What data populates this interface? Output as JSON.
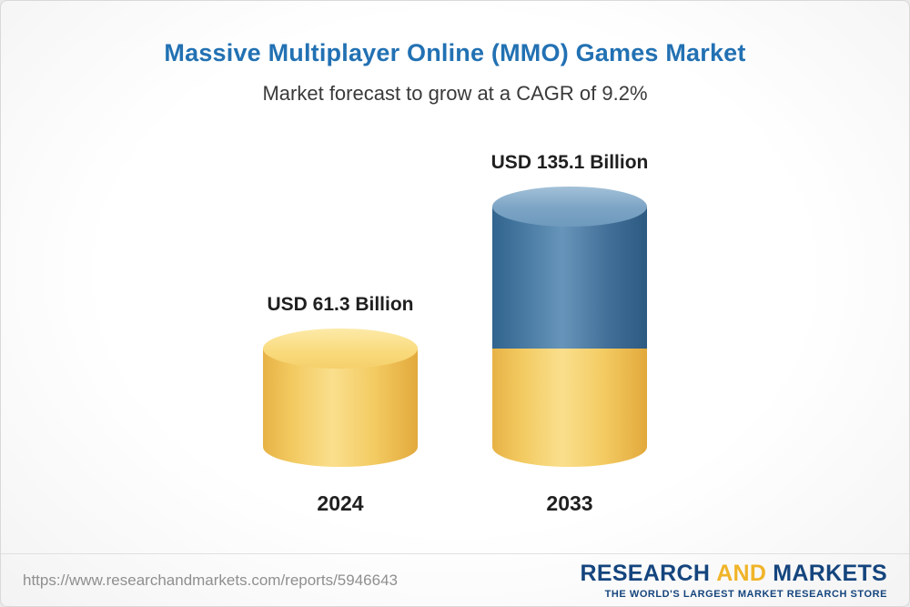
{
  "chart_data": {
    "type": "bar",
    "variant": "3d-cylinder",
    "title": "Massive Multiplayer Online (MMO) Games Market",
    "subtitle": "Market forecast to grow at a CAGR of 9.2%",
    "unit": "USD Billion",
    "categories": [
      "2024",
      "2033"
    ],
    "values": [
      61.3,
      135.1
    ],
    "bar_labels": [
      "USD 61.3 Billion",
      "USD 135.1 Billion"
    ],
    "cagr_percent": 9.2,
    "ylim": [
      0,
      140
    ],
    "legend": "none",
    "grid": "off",
    "colors": {
      "base_gold": "#f2c95f",
      "growth_blue": "#41739c"
    },
    "layout_hint": "2033 bar stacks 2024 base value in gold with growth portion in blue on top"
  },
  "footer": {
    "url": "https://www.researchandmarkets.com/reports/5946643",
    "logo": {
      "part1": "RESEARCH",
      "part2": "AND",
      "part3": "MARKETS",
      "tagline": "THE WORLD'S LARGEST MARKET RESEARCH STORE"
    }
  }
}
